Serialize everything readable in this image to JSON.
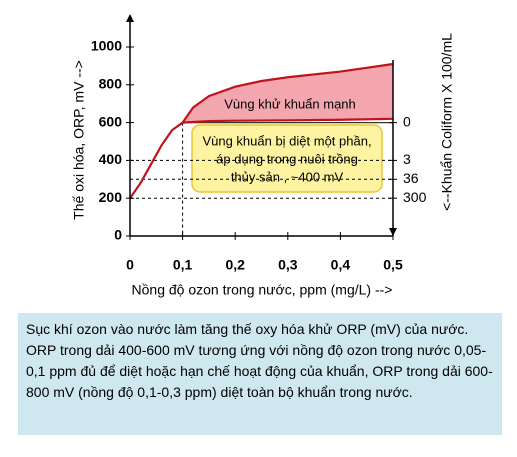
{
  "chart_data": {
    "type": "line",
    "xlabel": "Nồng độ ozon trong nước, ppm (mg/L) -->",
    "ylabel": "Thế oxi hóa, ORP, mV -->",
    "y2label": "<--Khuẩn  Coliform X 100/mL",
    "xlim": [
      0,
      0.5
    ],
    "xticks": [
      0,
      {
        "value": 0.1,
        "label": "0,1"
      },
      {
        "value": 0.2,
        "label": "0,2"
      },
      {
        "value": 0.3,
        "label": "0,3"
      },
      {
        "value": 0.4,
        "label": "0,4"
      },
      {
        "value": 0.5,
        "label": "0,5"
      }
    ],
    "ylim": [
      0,
      1000
    ],
    "yticks": [
      0,
      200,
      400,
      600,
      800,
      1000
    ],
    "series": [
      {
        "color": "#c0141c",
        "x": [
          0,
          0.02,
          0.04,
          0.06,
          0.08,
          0.1,
          0.15,
          0.2,
          0.3,
          0.4,
          0.5
        ],
        "values": [
          200,
          280,
          380,
          480,
          560,
          600,
          608,
          610,
          612,
          615,
          620
        ]
      },
      {
        "color": "#c0141c",
        "x": [
          0.1,
          0.12,
          0.15,
          0.2,
          0.25,
          0.3,
          0.4,
          0.5
        ],
        "values": [
          600,
          680,
          740,
          790,
          820,
          840,
          870,
          910
        ]
      }
    ],
    "fill_color": "#f4a6ae",
    "coliform_marks": [
      {
        "orp": 600,
        "count": "0"
      },
      {
        "orp": 400,
        "count": "3"
      },
      {
        "orp": 300,
        "count": "36"
      },
      {
        "orp": 200,
        "count": "300"
      }
    ],
    "annotations": [
      "Vùng khử khuẩn mạnh"
    ],
    "box_lines": [
      "Vùng khuẩn  bị diệt một phần,",
      "áp dụng trong nuôi trồng",
      "thủy sản , ~400 mV"
    ]
  },
  "caption": "Sục khí ozon vào nước làm tăng thế oxy hóa khử ORP (mV) của nước. ORP trong dải 400-600 mV tương ứng với nồng độ ozon trong nước 0,05-0,1 ppm đủ để diệt hoặc hạn chế hoạt động của khuẩn, ORP trong dải 600-800 mV (nồng độ 0,1-0,3 ppm) diệt toàn bộ khuẩn trong nước."
}
